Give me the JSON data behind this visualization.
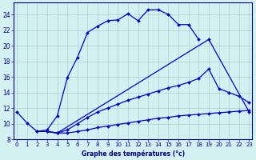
{
  "xlabel": "Graphe des températures (°c)",
  "background_color": "#d4f0f0",
  "grid_color": "#aacfcf",
  "line_color": "#0000cc",
  "ylim": [
    8,
    25.5
  ],
  "xlim": [
    -0.3,
    23.3
  ],
  "yticks": [
    8,
    10,
    12,
    14,
    16,
    18,
    20,
    22,
    24
  ],
  "xticks": [
    0,
    1,
    2,
    3,
    4,
    5,
    6,
    7,
    8,
    9,
    10,
    11,
    12,
    13,
    14,
    15,
    16,
    17,
    18,
    19,
    20,
    21,
    22,
    23
  ],
  "curve1_x": [
    0,
    1,
    2,
    3,
    4,
    5,
    6,
    7,
    8,
    9,
    10,
    11,
    12,
    13,
    14,
    15,
    16,
    17,
    18
  ],
  "curve1_y": [
    11.5,
    10.1,
    9.0,
    9.2,
    11.0,
    15.9,
    18.5,
    21.7,
    22.5,
    23.2,
    23.3,
    24.1,
    23.2,
    24.6,
    24.6,
    24.0,
    22.7,
    22.7,
    20.8
  ],
  "curve2_x": [
    2,
    3,
    4,
    19,
    23
  ],
  "curve2_y": [
    9.0,
    9.0,
    8.8,
    20.8,
    11.5
  ],
  "curve3_x": [
    3,
    4,
    5,
    6,
    7,
    8,
    9,
    10,
    11,
    12,
    13,
    14,
    15,
    16,
    17,
    18,
    19,
    20,
    21,
    22,
    23
  ],
  "curve3_y": [
    9.0,
    8.8,
    9.2,
    10.0,
    10.8,
    11.5,
    12.0,
    12.5,
    13.0,
    13.4,
    13.8,
    14.2,
    14.6,
    14.9,
    15.3,
    15.8,
    17.0,
    14.5,
    14.0,
    13.5,
    12.7
  ],
  "curve4_x": [
    3,
    4,
    5,
    6,
    7,
    8,
    9,
    10,
    11,
    12,
    13,
    14,
    15,
    16,
    17,
    18,
    19,
    20,
    21,
    22,
    23
  ],
  "curve4_y": [
    9.0,
    8.8,
    8.8,
    9.0,
    9.2,
    9.5,
    9.7,
    9.9,
    10.1,
    10.3,
    10.5,
    10.7,
    10.8,
    11.0,
    11.1,
    11.2,
    11.3,
    11.4,
    11.5,
    11.6,
    11.7
  ]
}
